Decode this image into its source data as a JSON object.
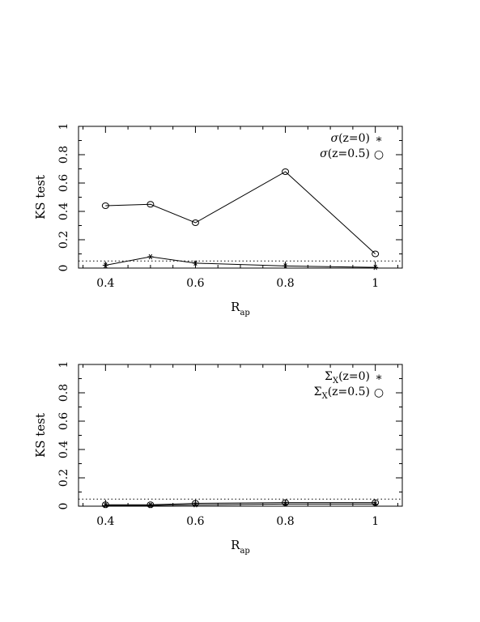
{
  "chart_data": [
    {
      "type": "line",
      "xlabel": "R",
      "xlabel_sub": "ap",
      "ylabel": "KS test",
      "xlim": [
        0.34,
        1.06
      ],
      "ylim": [
        0,
        1
      ],
      "x_ticks": [
        "0.4",
        "0.6",
        "0.8",
        "1"
      ],
      "y_ticks": [
        "0",
        "0.2",
        "0.4",
        "0.6",
        "0.8",
        "1"
      ],
      "reference_line": 0.05,
      "series": [
        {
          "legend_text": "σ(z=0)",
          "legend_marker": "∗",
          "marker": "star",
          "x": [
            0.4,
            0.5,
            0.6,
            0.8,
            1.0
          ],
          "y": [
            0.02,
            0.08,
            0.035,
            0.015,
            0.005
          ]
        },
        {
          "legend_text": "σ(z=0.5)",
          "legend_marker": "○",
          "marker": "circle",
          "x": [
            0.4,
            0.5,
            0.6,
            0.8,
            1.0
          ],
          "y": [
            0.44,
            0.45,
            0.32,
            0.68,
            0.1
          ]
        }
      ]
    },
    {
      "type": "line",
      "xlabel": "R",
      "xlabel_sub": "ap",
      "ylabel": "KS test",
      "xlim": [
        0.34,
        1.06
      ],
      "ylim": [
        0,
        1
      ],
      "x_ticks": [
        "0.4",
        "0.6",
        "0.8",
        "1"
      ],
      "y_ticks": [
        "0",
        "0.2",
        "0.4",
        "0.6",
        "0.8",
        "1"
      ],
      "reference_line": 0.05,
      "series": [
        {
          "legend_text": "Σ",
          "legend_sub": "X",
          "legend_tail": "(z=0)",
          "legend_marker": "∗",
          "marker": "star",
          "x": [
            0.4,
            0.5,
            0.6,
            0.8,
            1.0
          ],
          "y": [
            0.005,
            0.005,
            0.01,
            0.015,
            0.015
          ]
        },
        {
          "legend_text": "Σ",
          "legend_sub": "X",
          "legend_tail": "(z=0.5)",
          "legend_marker": "○",
          "marker": "circle",
          "x": [
            0.4,
            0.5,
            0.6,
            0.8,
            1.0
          ],
          "y": [
            0.01,
            0.01,
            0.02,
            0.025,
            0.025
          ]
        }
      ]
    }
  ]
}
